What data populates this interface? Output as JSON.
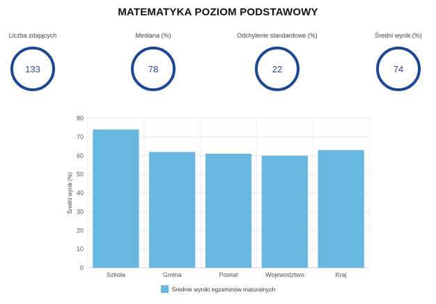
{
  "title": "MATEMATYKA POZIOM PODSTAWOWY",
  "stats": [
    {
      "label": "Liczba zdających",
      "value": "133"
    },
    {
      "label": "Mediana (%)",
      "value": "78"
    },
    {
      "label": "Odchylenie standardowe (%)",
      "value": "22"
    },
    {
      "label": "Średni wynik (%)",
      "value": "74"
    }
  ],
  "colors": {
    "accent": "#1d4693",
    "bar": "#67b7e0"
  },
  "chart_data": {
    "type": "bar",
    "categories": [
      "Szkoła",
      "Gmina",
      "Powiat",
      "Wojewodztwo",
      "Kraj"
    ],
    "series": [
      {
        "name": "Średnie wyniki egzaminów maturalnych",
        "values": [
          74,
          62,
          61,
          60,
          63
        ]
      }
    ],
    "xlabel": "",
    "ylabel": "Średni wynik (%)",
    "ylim": [
      0,
      80
    ],
    "yticks": [
      0,
      10,
      20,
      30,
      40,
      50,
      60,
      70,
      80
    ],
    "grid": true,
    "legend": "bottom"
  }
}
